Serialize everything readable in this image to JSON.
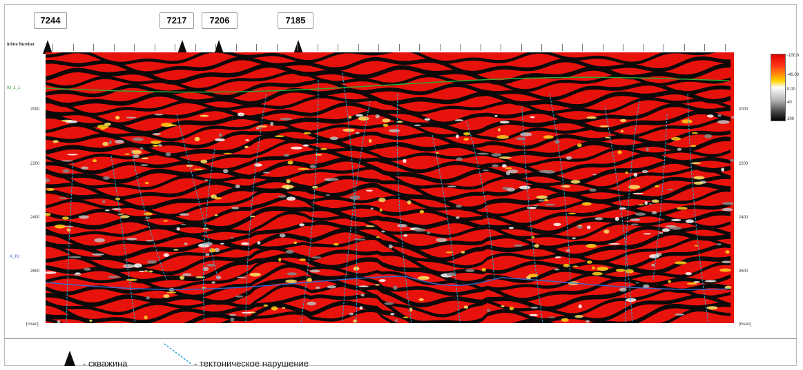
{
  "wells": [
    {
      "label": "7244"
    },
    {
      "label": "7217"
    },
    {
      "label": "7206"
    },
    {
      "label": "7185"
    }
  ],
  "section": {
    "inline_header": "Inline Number",
    "time_unit": "[msec]",
    "time_ticks": [
      "2000",
      "2200",
      "2400",
      "2600"
    ],
    "horizons": [
      {
        "label": "Ю_1_1",
        "color": "#2faa2f"
      },
      {
        "label": "А_Pz",
        "color": "#3060c0"
      }
    ],
    "colors": {
      "positive": "#e8120c",
      "negative": "#0a0a0a",
      "yellow": "#ffd21a",
      "fault": "#2aa8d8"
    }
  },
  "colorbar": {
    "labels": [
      "-100.0",
      "-40.00",
      "0.00",
      "40",
      "100"
    ]
  },
  "legend": {
    "well_label": "- скважина",
    "fault_label": "- тектоническое нарушение"
  }
}
